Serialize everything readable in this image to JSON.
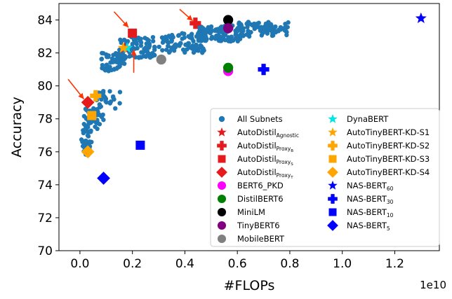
{
  "chart_data": {
    "type": "scatter",
    "xlabel": "#FLOPs",
    "ylabel": "Accuracy",
    "x_offset_label": "1e10",
    "xlim": [
      -0.08,
      1.37
    ],
    "ylim": [
      70,
      85
    ],
    "x_ticks": [
      "0.0",
      "0.2",
      "0.4",
      "0.6",
      "0.8",
      "1.0",
      "1.2"
    ],
    "x_tick_values": [
      0.0,
      0.2,
      0.4,
      0.6,
      0.8,
      1.0,
      1.2
    ],
    "y_ticks": [
      "70",
      "72",
      "74",
      "76",
      "78",
      "80",
      "82",
      "84"
    ],
    "y_tick_values": [
      70,
      72,
      74,
      76,
      78,
      80,
      82,
      84
    ],
    "grid": false,
    "legend_position": "lower-right",
    "subnets_cloud": [
      {
        "x_range": [
          0.005,
          0.045
        ],
        "y_range": [
          75.8,
          77.5
        ],
        "count": 40
      },
      {
        "x_range": [
          0.015,
          0.09
        ],
        "y_range": [
          77.2,
          78.7
        ],
        "count": 45
      },
      {
        "x_range": [
          0.05,
          0.16
        ],
        "y_range": [
          78.6,
          79.7
        ],
        "count": 20
      },
      {
        "x_range": [
          0.06,
          0.1
        ],
        "y_range": [
          79.2,
          79.6
        ],
        "count": 10
      },
      {
        "x_range": [
          0.08,
          0.17
        ],
        "y_range": [
          80.9,
          82.0
        ],
        "count": 60
      },
      {
        "x_range": [
          0.15,
          0.29
        ],
        "y_range": [
          81.7,
          83.0
        ],
        "count": 80
      },
      {
        "x_range": [
          0.3,
          0.48
        ],
        "y_range": [
          82.0,
          83.2
        ],
        "count": 90
      },
      {
        "x_range": [
          0.45,
          0.62
        ],
        "y_range": [
          82.7,
          83.7
        ],
        "count": 120
      },
      {
        "x_range": [
          0.6,
          0.8
        ],
        "y_range": [
          83.0,
          83.9
        ],
        "count": 80
      }
    ],
    "series": [
      {
        "name": "All Subnets",
        "name_sub": "",
        "marker": "circle-small",
        "color": "#1f77b4",
        "points": []
      },
      {
        "name": "AutoDistil",
        "name_sub": "Agnostic",
        "marker": "star",
        "color": "#e41a1c",
        "points": [
          [
            0.17,
            82.3
          ]
        ]
      },
      {
        "name": "AutoDistil",
        "name_sub": "Proxy",
        "name_sub2": "B",
        "marker": "plus",
        "color": "#e41a1c",
        "points": [
          [
            0.44,
            83.8
          ]
        ]
      },
      {
        "name": "AutoDistil",
        "name_sub": "Proxy",
        "name_sub2": "S",
        "marker": "square",
        "color": "#e41a1c",
        "points": [
          [
            0.2,
            83.2
          ]
        ]
      },
      {
        "name": "AutoDistil",
        "name_sub": "Proxy",
        "name_sub2": "T",
        "marker": "diamond",
        "color": "#e41a1c",
        "points": [
          [
            0.03,
            79.0
          ]
        ]
      },
      {
        "name": "BERT6_PKD",
        "name_sub": "",
        "marker": "circle",
        "color": "#ff00ff",
        "points": [
          [
            0.565,
            80.9
          ]
        ]
      },
      {
        "name": "DistilBERT6",
        "name_sub": "",
        "marker": "circle",
        "color": "#008000",
        "points": [
          [
            0.565,
            81.1
          ]
        ]
      },
      {
        "name": "MiniLM",
        "name_sub": "",
        "marker": "circle",
        "color": "#000000",
        "points": [
          [
            0.565,
            84.0
          ]
        ]
      },
      {
        "name": "TinyBERT6",
        "name_sub": "",
        "marker": "circle",
        "color": "#800080",
        "points": [
          [
            0.565,
            83.5
          ]
        ]
      },
      {
        "name": "MobileBERT",
        "name_sub": "",
        "marker": "circle",
        "color": "#808080",
        "points": [
          [
            0.31,
            81.6
          ]
        ]
      },
      {
        "name": "DynaBERT",
        "name_sub": "",
        "marker": "star",
        "color": "#00e5e5",
        "points": [
          [
            0.18,
            82.3
          ]
        ]
      },
      {
        "name": "AutoTinyBERT-KD-S1",
        "name_sub": "",
        "marker": "star",
        "color": "#ffa500",
        "points": [
          [
            0.165,
            82.3
          ]
        ]
      },
      {
        "name": "AutoTinyBERT-KD-S2",
        "name_sub": "",
        "marker": "plus",
        "color": "#ffa500",
        "points": [
          [
            0.06,
            79.4
          ]
        ]
      },
      {
        "name": "AutoTinyBERT-KD-S3",
        "name_sub": "",
        "marker": "square",
        "color": "#ffa500",
        "points": [
          [
            0.045,
            78.2
          ]
        ]
      },
      {
        "name": "AutoTinyBERT-KD-S4",
        "name_sub": "",
        "marker": "diamond",
        "color": "#ffa500",
        "points": [
          [
            0.03,
            76.0
          ]
        ]
      },
      {
        "name": "NAS-BERT",
        "name_sub": "60",
        "marker": "star",
        "color": "#0000ff",
        "points": [
          [
            1.3,
            84.1
          ]
        ]
      },
      {
        "name": "NAS-BERT",
        "name_sub": "30",
        "marker": "plus",
        "color": "#0000ff",
        "points": [
          [
            0.7,
            81.0
          ]
        ]
      },
      {
        "name": "NAS-BERT",
        "name_sub": "10",
        "marker": "square",
        "color": "#0000ff",
        "points": [
          [
            0.23,
            76.4
          ]
        ]
      },
      {
        "name": "NAS-BERT",
        "name_sub": "5",
        "marker": "diamond",
        "color": "#0000ff",
        "points": [
          [
            0.09,
            74.4
          ]
        ]
      }
    ],
    "arrows": [
      {
        "from": [
          0.13,
          84.5
        ],
        "to": [
          0.185,
          83.55
        ],
        "color": "#ff3300"
      },
      {
        "from": [
          0.205,
          80.8
        ],
        "to": [
          0.205,
          82.2
        ],
        "color": "#ff3300"
      },
      {
        "from": [
          0.38,
          84.65
        ],
        "to": [
          0.43,
          83.95
        ],
        "color": "#ff3300"
      },
      {
        "from": [
          -0.045,
          80.4
        ],
        "to": [
          0.015,
          79.2
        ],
        "color": "#ff3300"
      }
    ]
  }
}
